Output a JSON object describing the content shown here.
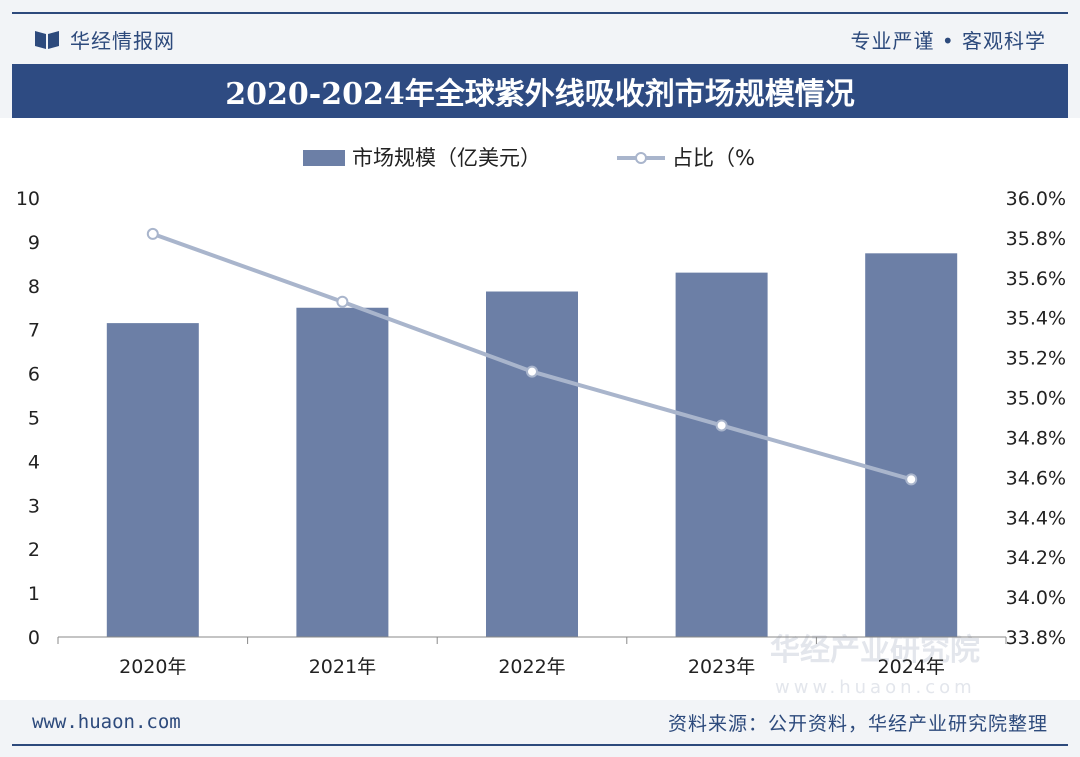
{
  "header": {
    "brand_name": "华经情报网",
    "slogan": "专业严谨 • 客观科学"
  },
  "title": "2020-2024年全球紫外线吸收剂市场规模情况",
  "footer": {
    "url": "www.huaon.com",
    "source": "资料来源：公开资料，华经产业研究院整理"
  },
  "watermark": {
    "name": "华经产业研究院",
    "url": "www.huaon.com"
  },
  "colors": {
    "bar": "#6c7fa6",
    "line": "#a9b5cc",
    "title_bg": "#2e4b82",
    "brand": "#2d4a7c"
  },
  "chart_data": {
    "type": "bar",
    "categories": [
      "2020年",
      "2021年",
      "2022年",
      "2023年",
      "2024年"
    ],
    "series": [
      {
        "name": "市场规模（亿美元）",
        "type": "bar",
        "axis": "left",
        "values": [
          7.15,
          7.5,
          7.87,
          8.3,
          8.74
        ]
      },
      {
        "name": "占比（%",
        "type": "line",
        "axis": "right",
        "values": [
          35.82,
          35.48,
          35.13,
          34.86,
          34.59
        ]
      }
    ],
    "y_left": {
      "min": 0,
      "max": 10,
      "ticks": [
        "0",
        "1",
        "2",
        "3",
        "4",
        "5",
        "6",
        "7",
        "8",
        "9",
        "10"
      ]
    },
    "y_right": {
      "min": 33.8,
      "max": 36.0,
      "ticks": [
        "33.8%",
        "34.0%",
        "34.2%",
        "34.4%",
        "34.6%",
        "34.8%",
        "35.0%",
        "35.2%",
        "35.4%",
        "35.6%",
        "35.8%",
        "36.0%"
      ]
    },
    "legend_position": "top-center",
    "grid": false
  }
}
